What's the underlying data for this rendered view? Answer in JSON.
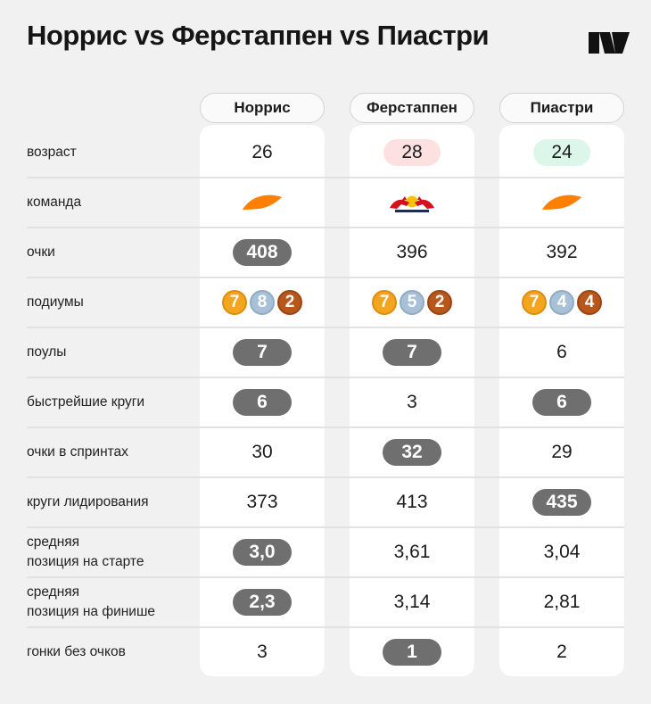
{
  "title": "Норрис vs Ферстаппен vs Пиастри",
  "logo_icon": "publisher-logo-icon",
  "drivers": [
    {
      "name": "Норрис",
      "age": "26",
      "team_icon": "mclaren-logo-icon",
      "points": "408",
      "podiums": {
        "gold": "7",
        "silver": "8",
        "bronze": "2"
      },
      "poles": "7",
      "fastest_laps": "6",
      "sprint_points": "30",
      "laps_led": "373",
      "avg_start": "3,0",
      "avg_finish": "2,3",
      "no_points": "3"
    },
    {
      "name": "Ферстаппен",
      "age": "28",
      "team_icon": "red-bull-logo-icon",
      "points": "396",
      "podiums": {
        "gold": "7",
        "silver": "5",
        "bronze": "2"
      },
      "poles": "7",
      "fastest_laps": "3",
      "sprint_points": "32",
      "laps_led": "413",
      "avg_start": "3,61",
      "avg_finish": "3,14",
      "no_points": "1"
    },
    {
      "name": "Пиастри",
      "age": "24",
      "team_icon": "mclaren-logo-icon",
      "points": "392",
      "podiums": {
        "gold": "7",
        "silver": "4",
        "bronze": "4"
      },
      "poles": "6",
      "fastest_laps": "6",
      "sprint_points": "29",
      "laps_led": "435",
      "avg_start": "3,04",
      "avg_finish": "2,81",
      "no_points": "2"
    }
  ],
  "labels": {
    "age": "возраст",
    "team": "команда",
    "points": "очки",
    "podiums": "подиумы",
    "poles": "поулы",
    "fastest_laps": "быстрейшие круги",
    "sprint_points": "очки в спринтах",
    "laps_led": "круги лидирования",
    "avg_start_1": "средняя",
    "avg_start_2": "позиция на старте",
    "avg_finish_1": "средняя",
    "avg_finish_2": "позиция на финише",
    "no_points": "гонки без очков"
  },
  "colors": {
    "highlight_pill": "#6f6f6f",
    "age_oldest": "#fde1e1",
    "age_youngest": "#dcf6ea",
    "medal_gold": "#f4a51f",
    "medal_silver": "#a9c1d6",
    "medal_bronze": "#b8571b",
    "mclaren_orange": "#ff8000"
  }
}
